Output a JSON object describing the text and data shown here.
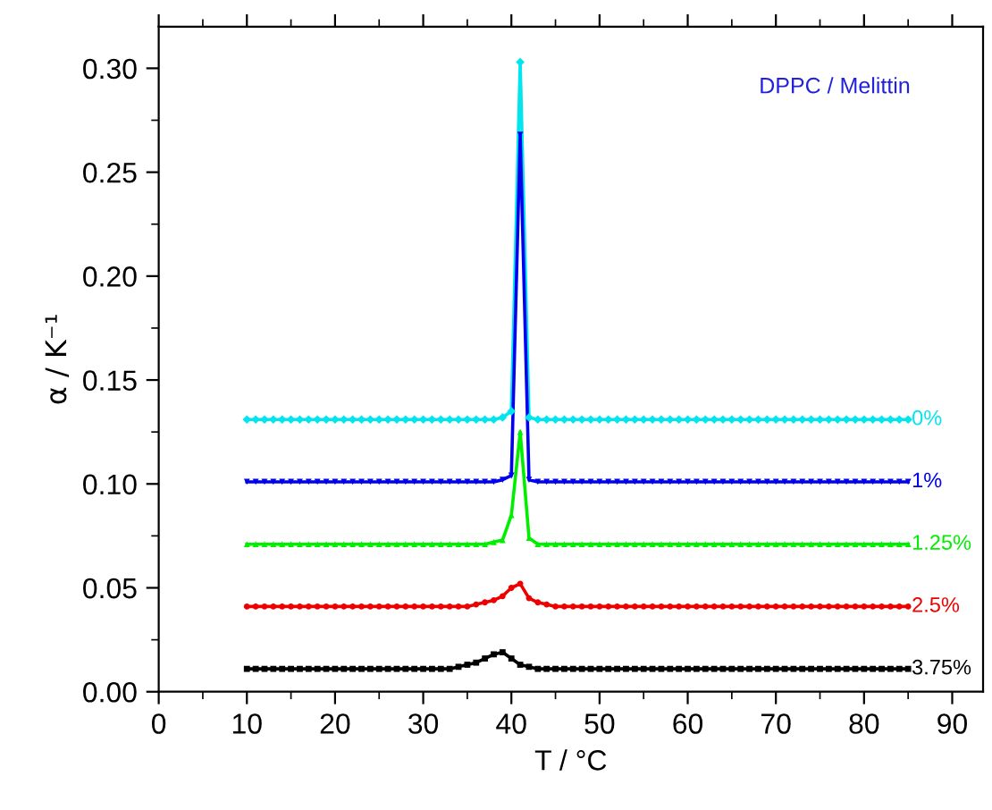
{
  "chart_data": {
    "type": "line",
    "xlabel": "T / °C",
    "ylabel": "α / K⁻¹",
    "annotations": [
      "DPPC / Melittin"
    ],
    "x": [
      10,
      11,
      12,
      13,
      14,
      15,
      16,
      17,
      18,
      19,
      20,
      21,
      22,
      23,
      24,
      25,
      26,
      27,
      28,
      29,
      30,
      31,
      32,
      33,
      34,
      35,
      36,
      37,
      38,
      39,
      40,
      41,
      42,
      43,
      44,
      45,
      46,
      47,
      48,
      49,
      50,
      51,
      52,
      53,
      54,
      55,
      56,
      57,
      58,
      59,
      60,
      61,
      62,
      63,
      64,
      65,
      66,
      67,
      68,
      69,
      70,
      71,
      72,
      73,
      74,
      75,
      76,
      77,
      78,
      79,
      80,
      81,
      82,
      83,
      84,
      85
    ],
    "xlim": [
      0,
      93.5
    ],
    "xticks": [
      0,
      10,
      20,
      30,
      40,
      50,
      60,
      70,
      80,
      90
    ],
    "ylim": [
      0,
      0.32
    ],
    "yticks": [
      {
        "value": 0,
        "label": "0.00"
      },
      {
        "value": 0.05,
        "label": "0.05"
      },
      {
        "value": 0.1,
        "label": "0.10"
      },
      {
        "value": 0.15,
        "label": "0.15"
      },
      {
        "value": 0.2,
        "label": "0.20"
      },
      {
        "value": 0.25,
        "label": "0.25"
      },
      {
        "value": 0.3,
        "label": "0.30"
      }
    ],
    "grid": false,
    "series": [
      {
        "name": "0%",
        "color": "#00e5ee",
        "marker": "diamond",
        "values": [
          0.131,
          0.131,
          0.131,
          0.131,
          0.131,
          0.131,
          0.131,
          0.131,
          0.131,
          0.131,
          0.131,
          0.131,
          0.131,
          0.131,
          0.131,
          0.131,
          0.131,
          0.131,
          0.131,
          0.131,
          0.131,
          0.131,
          0.131,
          0.131,
          0.131,
          0.131,
          0.131,
          0.131,
          0.131,
          0.132,
          0.135,
          0.303,
          0.132,
          0.131,
          0.131,
          0.131,
          0.131,
          0.131,
          0.131,
          0.131,
          0.131,
          0.131,
          0.131,
          0.131,
          0.131,
          0.131,
          0.131,
          0.131,
          0.131,
          0.131,
          0.131,
          0.131,
          0.131,
          0.131,
          0.131,
          0.131,
          0.131,
          0.131,
          0.131,
          0.131,
          0.131,
          0.131,
          0.131,
          0.131,
          0.131,
          0.131,
          0.131,
          0.131,
          0.131,
          0.131,
          0.131,
          0.131,
          0.131,
          0.131,
          0.131,
          0.131
        ]
      },
      {
        "name": "1%",
        "color": "#0000ee",
        "marker": "triangle_down",
        "values": [
          0.101,
          0.101,
          0.101,
          0.101,
          0.101,
          0.101,
          0.101,
          0.101,
          0.101,
          0.101,
          0.101,
          0.101,
          0.101,
          0.101,
          0.101,
          0.101,
          0.101,
          0.101,
          0.101,
          0.101,
          0.101,
          0.101,
          0.101,
          0.101,
          0.101,
          0.101,
          0.101,
          0.101,
          0.101,
          0.102,
          0.104,
          0.268,
          0.102,
          0.101,
          0.101,
          0.101,
          0.101,
          0.101,
          0.101,
          0.101,
          0.101,
          0.101,
          0.101,
          0.101,
          0.101,
          0.101,
          0.101,
          0.101,
          0.101,
          0.101,
          0.101,
          0.101,
          0.101,
          0.101,
          0.101,
          0.101,
          0.101,
          0.101,
          0.101,
          0.101,
          0.101,
          0.101,
          0.101,
          0.101,
          0.101,
          0.101,
          0.101,
          0.101,
          0.101,
          0.101,
          0.101,
          0.101,
          0.101,
          0.101,
          0.101,
          0.101
        ]
      },
      {
        "name": "1.25%",
        "color": "#00ee00",
        "marker": "triangle",
        "values": [
          0.071,
          0.071,
          0.071,
          0.071,
          0.071,
          0.071,
          0.071,
          0.071,
          0.071,
          0.071,
          0.071,
          0.071,
          0.071,
          0.071,
          0.071,
          0.071,
          0.071,
          0.071,
          0.071,
          0.071,
          0.071,
          0.071,
          0.071,
          0.071,
          0.071,
          0.071,
          0.071,
          0.071,
          0.072,
          0.073,
          0.085,
          0.125,
          0.074,
          0.071,
          0.071,
          0.071,
          0.071,
          0.071,
          0.071,
          0.071,
          0.071,
          0.071,
          0.071,
          0.071,
          0.071,
          0.071,
          0.071,
          0.071,
          0.071,
          0.071,
          0.071,
          0.071,
          0.071,
          0.071,
          0.071,
          0.071,
          0.071,
          0.071,
          0.071,
          0.071,
          0.071,
          0.071,
          0.071,
          0.071,
          0.071,
          0.071,
          0.071,
          0.071,
          0.071,
          0.071,
          0.071,
          0.071,
          0.071,
          0.071,
          0.071,
          0.071
        ]
      },
      {
        "name": "2.5%",
        "color": "#ee0000",
        "marker": "circle",
        "values": [
          0.041,
          0.041,
          0.041,
          0.041,
          0.041,
          0.041,
          0.041,
          0.041,
          0.041,
          0.041,
          0.041,
          0.041,
          0.041,
          0.041,
          0.041,
          0.041,
          0.041,
          0.041,
          0.041,
          0.041,
          0.041,
          0.041,
          0.041,
          0.041,
          0.041,
          0.041,
          0.042,
          0.043,
          0.044,
          0.046,
          0.05,
          0.052,
          0.045,
          0.043,
          0.042,
          0.041,
          0.041,
          0.041,
          0.041,
          0.041,
          0.041,
          0.041,
          0.041,
          0.041,
          0.041,
          0.041,
          0.041,
          0.041,
          0.041,
          0.041,
          0.041,
          0.041,
          0.041,
          0.041,
          0.041,
          0.041,
          0.041,
          0.041,
          0.041,
          0.041,
          0.041,
          0.041,
          0.041,
          0.041,
          0.041,
          0.041,
          0.041,
          0.041,
          0.041,
          0.041,
          0.041,
          0.041,
          0.041,
          0.041,
          0.041,
          0.041
        ]
      },
      {
        "name": "3.75%",
        "color": "#000000",
        "marker": "square",
        "values": [
          0.011,
          0.011,
          0.011,
          0.011,
          0.011,
          0.011,
          0.011,
          0.011,
          0.011,
          0.011,
          0.011,
          0.011,
          0.011,
          0.011,
          0.011,
          0.011,
          0.011,
          0.011,
          0.011,
          0.011,
          0.011,
          0.011,
          0.011,
          0.011,
          0.012,
          0.013,
          0.014,
          0.016,
          0.018,
          0.019,
          0.016,
          0.013,
          0.012,
          0.011,
          0.011,
          0.011,
          0.011,
          0.011,
          0.011,
          0.011,
          0.011,
          0.011,
          0.011,
          0.011,
          0.011,
          0.011,
          0.011,
          0.011,
          0.011,
          0.011,
          0.011,
          0.011,
          0.011,
          0.011,
          0.011,
          0.011,
          0.011,
          0.011,
          0.011,
          0.011,
          0.011,
          0.011,
          0.011,
          0.011,
          0.011,
          0.011,
          0.011,
          0.011,
          0.011,
          0.011,
          0.011,
          0.011,
          0.011,
          0.011,
          0.011,
          0.011
        ]
      }
    ]
  }
}
